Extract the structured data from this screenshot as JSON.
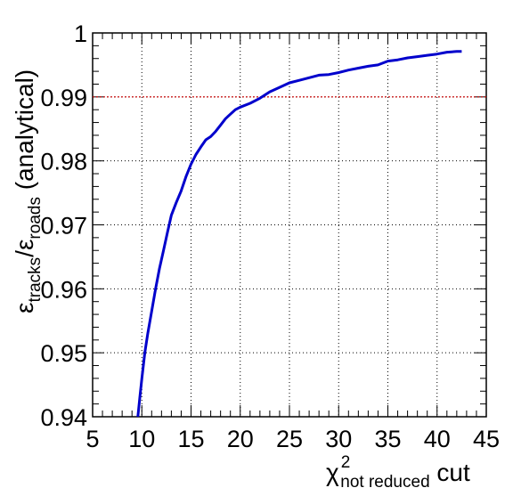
{
  "chart_data": {
    "type": "line",
    "title": "",
    "xlabel": {
      "main": "χ",
      "superscript": "2",
      "subscript": "not reduced",
      "suffix": " cut"
    },
    "ylabel": {
      "num_symbol": "ε",
      "num_sub": "tracks",
      "slash": "/",
      "den_symbol": "ε",
      "den_sub": "roads",
      "suffix": " (analytical)"
    },
    "xlim": [
      5,
      45
    ],
    "ylim": [
      0.94,
      1.0
    ],
    "x_ticks": [
      5,
      10,
      15,
      20,
      25,
      30,
      35,
      40,
      45
    ],
    "x_tick_labels": [
      "5",
      "10",
      "15",
      "20",
      "25",
      "30",
      "35",
      "40",
      "45"
    ],
    "y_ticks": [
      0.94,
      0.95,
      0.96,
      0.97,
      0.98,
      0.99,
      1.0
    ],
    "y_tick_labels": [
      "0.94",
      "0.95",
      "0.96",
      "0.97",
      "0.98",
      "0.99",
      "1"
    ],
    "grid": true,
    "reference_line": {
      "y": 0.99,
      "color": "#cc0000",
      "style": "dotted"
    },
    "series": [
      {
        "color": "#0000cc",
        "x": [
          9.6,
          9.8,
          10.0,
          10.3,
          10.6,
          11.0,
          11.4,
          11.8,
          12.2,
          12.6,
          13.0,
          13.5,
          14.0,
          14.5,
          15.0,
          15.5,
          16.0,
          16.5,
          17.0,
          17.5,
          18.0,
          18.5,
          19.0,
          19.5,
          20.0,
          21.0,
          22.0,
          23.0,
          24.0,
          25.0,
          26.0,
          27.0,
          28.0,
          29.0,
          30.0,
          31.0,
          32.0,
          33.0,
          34.0,
          35.0,
          36.0,
          37.0,
          38.0,
          39.0,
          40.0,
          41.0,
          42.0,
          42.5
        ],
        "y": [
          0.94,
          0.943,
          0.946,
          0.95,
          0.953,
          0.9565,
          0.96,
          0.9632,
          0.966,
          0.9688,
          0.9715,
          0.9735,
          0.9753,
          0.9776,
          0.9795,
          0.981,
          0.9822,
          0.9833,
          0.9838,
          0.9846,
          0.9856,
          0.9866,
          0.9873,
          0.988,
          0.9884,
          0.989,
          0.9898,
          0.9908,
          0.9915,
          0.9922,
          0.9926,
          0.993,
          0.9934,
          0.9935,
          0.9938,
          0.9942,
          0.9945,
          0.9948,
          0.995,
          0.9956,
          0.9958,
          0.9961,
          0.9963,
          0.9965,
          0.9967,
          0.997,
          0.9971,
          0.9971
        ]
      }
    ]
  }
}
